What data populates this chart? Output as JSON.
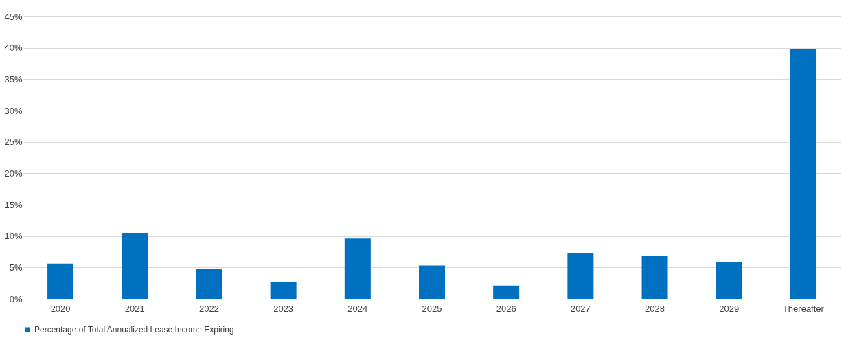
{
  "chart_data": {
    "type": "bar",
    "categories": [
      "2020",
      "2021",
      "2022",
      "2023",
      "2024",
      "2025",
      "2026",
      "2027",
      "2028",
      "2029",
      "Thereafter"
    ],
    "series": [
      {
        "name": "Percentage of Total Annualized Lease Income Expiring",
        "color": "#0070c0",
        "values": [
          5.6,
          10.5,
          4.7,
          2.7,
          9.6,
          5.3,
          2.1,
          7.3,
          6.8,
          5.8,
          39.8
        ]
      }
    ],
    "ylim": [
      0,
      45
    ],
    "yticks": [
      {
        "value": 0,
        "label": "0%"
      },
      {
        "value": 5,
        "label": "5%"
      },
      {
        "value": 10,
        "label": "10%"
      },
      {
        "value": 15,
        "label": "15%"
      },
      {
        "value": 20,
        "label": "20%"
      },
      {
        "value": 25,
        "label": "25%"
      },
      {
        "value": 30,
        "label": "30%"
      },
      {
        "value": 35,
        "label": "35%"
      },
      {
        "value": 40,
        "label": "40%"
      },
      {
        "value": 45,
        "label": "45%"
      }
    ],
    "grid": "y",
    "legend": "bottom"
  }
}
